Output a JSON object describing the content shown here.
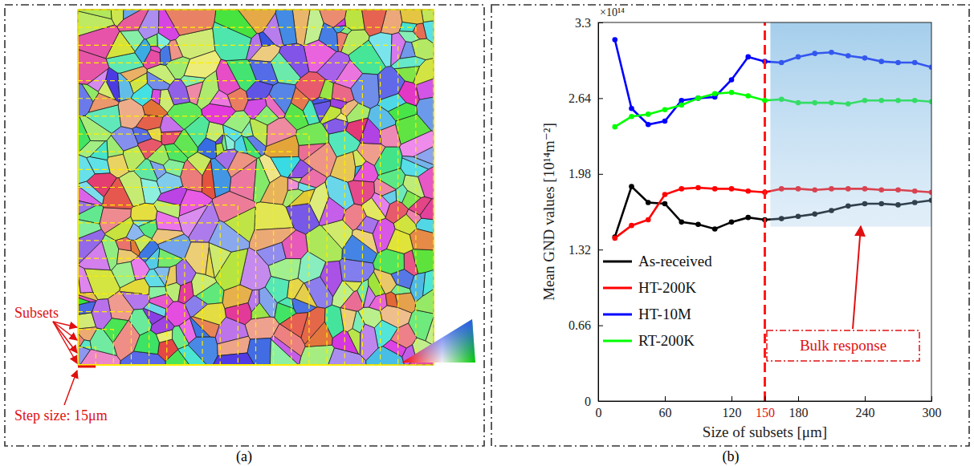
{
  "panel_labels": [
    "(a)",
    "(b)"
  ],
  "image_panel": {
    "annotations": [
      "Subsets",
      "Step size: 15μm"
    ]
  },
  "chart_data": {
    "type": "line",
    "x_label": "Size of subsets [μm]",
    "y_label": "Mean GND values [10¹⁴m⁻²]",
    "annotations": [
      "×10¹⁴",
      "Bulk response"
    ],
    "x": [
      15,
      30,
      45,
      60,
      75,
      90,
      105,
      120,
      135,
      150,
      165,
      180,
      195,
      210,
      225,
      240,
      255,
      270,
      285,
      300
    ],
    "series": [
      {
        "name": "As-received",
        "color": "#000000",
        "marker": "circle",
        "values": [
          1.43,
          1.87,
          1.73,
          1.72,
          1.56,
          1.54,
          1.5,
          1.56,
          1.6,
          1.58,
          1.59,
          1.61,
          1.63,
          1.66,
          1.7,
          1.72,
          1.72,
          1.71,
          1.73,
          1.75
        ]
      },
      {
        "name": "HT-200K",
        "color": "#ff0000",
        "marker": "circle",
        "values": [
          1.42,
          1.53,
          1.58,
          1.8,
          1.85,
          1.86,
          1.85,
          1.85,
          1.83,
          1.82,
          1.85,
          1.85,
          1.84,
          1.85,
          1.85,
          1.85,
          1.84,
          1.84,
          1.83,
          1.82
        ]
      },
      {
        "name": "HT-10M",
        "color": "#0000ff",
        "marker": "circle",
        "values": [
          3.15,
          2.55,
          2.41,
          2.44,
          2.62,
          2.64,
          2.65,
          2.8,
          3.0,
          2.96,
          2.95,
          3.0,
          3.03,
          3.04,
          3.01,
          2.99,
          2.96,
          2.95,
          2.95,
          2.91
        ]
      },
      {
        "name": "RT-200K",
        "color": "#00ff00",
        "marker": "circle",
        "values": [
          2.39,
          2.48,
          2.5,
          2.54,
          2.58,
          2.64,
          2.68,
          2.69,
          2.66,
          2.62,
          2.63,
          2.6,
          2.6,
          2.6,
          2.59,
          2.62,
          2.62,
          2.62,
          2.62,
          2.61
        ]
      }
    ],
    "xlim": [
      0,
      300
    ],
    "ylim": [
      0,
      3.3
    ],
    "xticks": [
      0,
      60,
      120,
      150,
      180,
      240,
      300
    ],
    "yticks": [
      0,
      0.66,
      1.32,
      1.98,
      2.64,
      3.3
    ],
    "reference_line": 150,
    "shaded_region": {
      "x": [
        155,
        300
      ],
      "y": [
        1.52,
        3.3
      ]
    },
    "grid": false,
    "legend": "lower left"
  }
}
